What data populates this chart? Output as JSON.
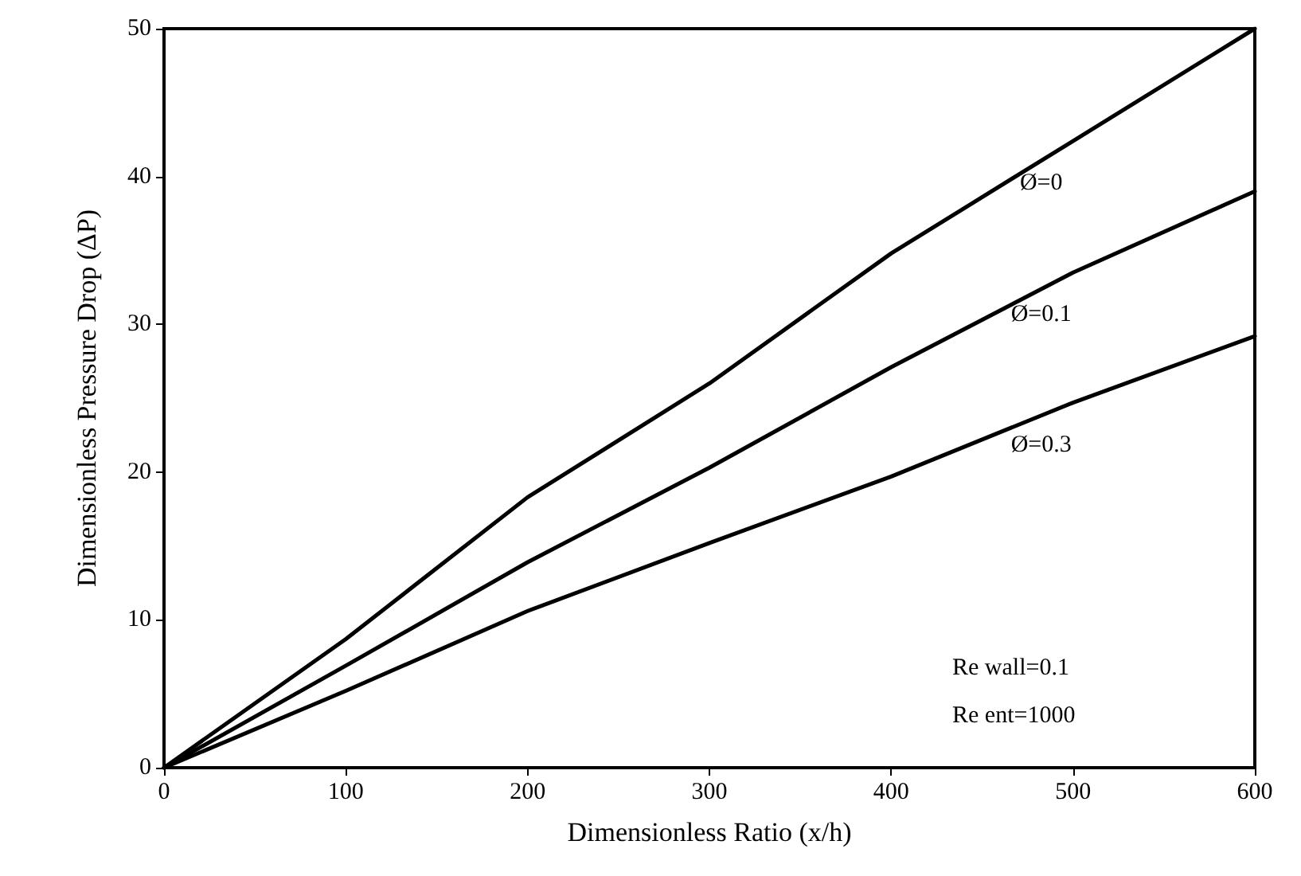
{
  "chart_data": {
    "type": "line",
    "xlabel": "Dimensionless Ratio (x/h)",
    "ylabel": "Dimensionless Pressure Drop (ΔP)",
    "x": [
      0,
      100,
      200,
      300,
      400,
      500,
      600
    ],
    "series": [
      {
        "name": "Ø=0",
        "color": "#000000",
        "values": [
          0,
          8.7,
          18.3,
          26.0,
          34.8,
          42.4,
          50
        ]
      },
      {
        "name": "Ø=0.1",
        "color": "#000000",
        "values": [
          0,
          6.9,
          13.9,
          20.3,
          27.1,
          33.5,
          39.0
        ]
      },
      {
        "name": "Ø=0.3",
        "color": "#000000",
        "values": [
          0,
          5.2,
          10.6,
          15.2,
          19.7,
          24.7,
          29.2
        ]
      }
    ],
    "xlim": [
      0,
      600
    ],
    "xticks": [
      0,
      100,
      200,
      300,
      400,
      500,
      600
    ],
    "ylim": [
      0,
      50
    ],
    "yticks": [
      0,
      10,
      20,
      30,
      40,
      50
    ],
    "grid": false,
    "legend": false,
    "marker": "none",
    "line_style": "solid",
    "annotations": [
      "Re wall=0.1",
      "Re ent=1000"
    ]
  }
}
